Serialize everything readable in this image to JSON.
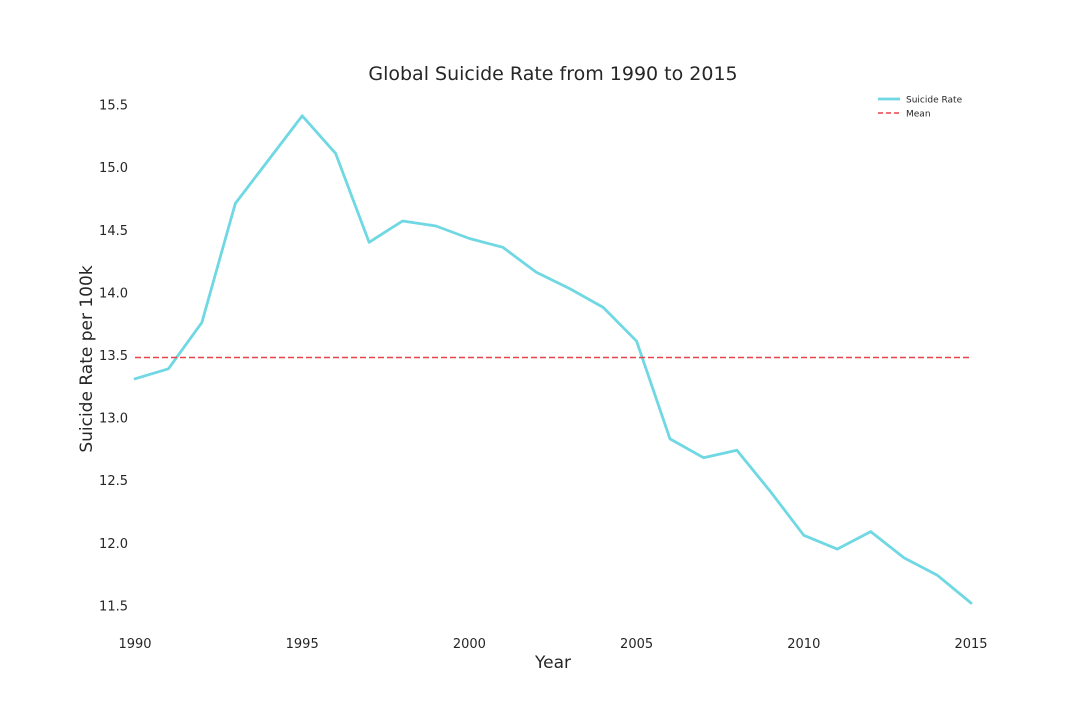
{
  "chart_data": {
    "type": "line",
    "title": "Global Suicide Rate from 1990 to 2015",
    "xlabel": "Year",
    "ylabel": "Suicide Rate per 100k",
    "xlim": [
      1990,
      2015
    ],
    "ylim": [
      11.4,
      15.6
    ],
    "x_ticks": [
      1990,
      1995,
      2000,
      2005,
      2010,
      2015
    ],
    "x_tick_labels": [
      "1990",
      "1995",
      "2000",
      "2005",
      "2010",
      "2015"
    ],
    "y_ticks": [
      11.5,
      12.0,
      12.5,
      13.0,
      13.5,
      14.0,
      14.5,
      15.0,
      15.5
    ],
    "y_tick_labels": [
      "11.5",
      "12.0",
      "12.5",
      "13.0",
      "13.5",
      "14.0",
      "14.5",
      "15.0",
      "15.5"
    ],
    "grid": false,
    "legend_position": "top-right",
    "series": [
      {
        "name": "Suicide Rate",
        "style": "solid",
        "color": "#6fd8e3",
        "x": [
          1990,
          1991,
          1992,
          1993,
          1994,
          1995,
          1996,
          1997,
          1998,
          1999,
          2000,
          2001,
          2002,
          2003,
          2004,
          2005,
          2006,
          2007,
          2008,
          2009,
          2010,
          2011,
          2012,
          2013,
          2014,
          2015
        ],
        "values": [
          13.31,
          13.39,
          13.76,
          14.71,
          15.06,
          15.41,
          15.11,
          14.4,
          14.57,
          14.53,
          14.43,
          14.36,
          14.16,
          14.03,
          13.88,
          13.61,
          12.83,
          12.68,
          12.74,
          12.41,
          12.06,
          11.95,
          12.09,
          11.88,
          11.74,
          11.52
        ]
      },
      {
        "name": "Mean",
        "style": "dashed",
        "color": "#e8434b",
        "x": [
          1990,
          2015
        ],
        "values": [
          13.48,
          13.48
        ]
      }
    ]
  }
}
